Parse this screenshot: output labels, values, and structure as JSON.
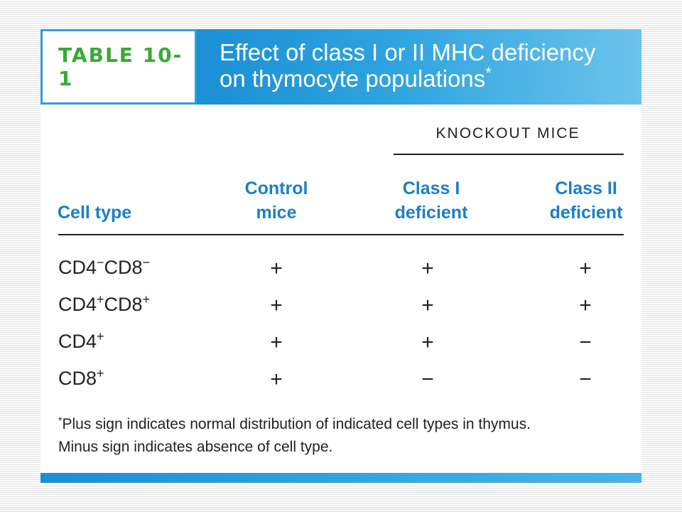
{
  "header": {
    "tag": "TABLE 10-1",
    "title_line1": "Effect of class I or II MHC deficiency",
    "title_line2": "on thymocyte populations",
    "title_mark": "*"
  },
  "table": {
    "group_header": "KNOCKOUT MICE",
    "columns": {
      "cell_type": "Cell type",
      "control_l1": "Control",
      "control_l2": "mice",
      "class1_l1": "Class I",
      "class1_l2": "deficient",
      "class2_l1": "Class II",
      "class2_l2": "deficient"
    },
    "rows": [
      {
        "base1": "CD4",
        "sup1": "−",
        "base2": "CD8",
        "sup2": "−",
        "control": "+",
        "class1": "+",
        "class2": "+"
      },
      {
        "base1": "CD4",
        "sup1": "+",
        "base2": "CD8",
        "sup2": "+",
        "control": "+",
        "class1": "+",
        "class2": "+"
      },
      {
        "base1": "CD4",
        "sup1": "+",
        "base2": "",
        "sup2": "",
        "control": "+",
        "class1": "+",
        "class2": "−"
      },
      {
        "base1": "CD8",
        "sup1": "+",
        "base2": "",
        "sup2": "",
        "control": "+",
        "class1": "−",
        "class2": "−"
      }
    ]
  },
  "footnote": {
    "mark": "*",
    "line1": "Plus sign indicates normal distribution of indicated cell types in thymus.",
    "line2": "Minus sign indicates absence of cell type."
  },
  "colors": {
    "accent_blue": "#2fa4e0",
    "heading_blue": "#1a7fc9",
    "tag_green": "#3aa935"
  }
}
